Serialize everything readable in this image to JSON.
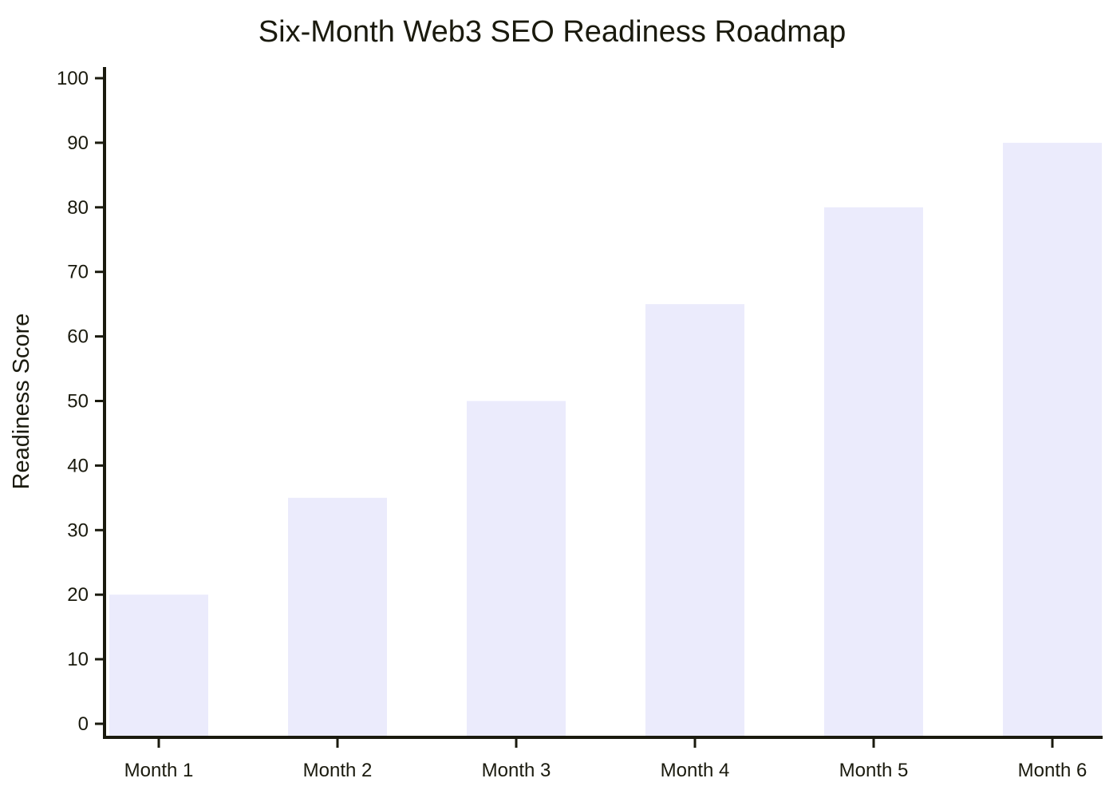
{
  "chart_data": {
    "type": "bar",
    "title": "Six-Month Web3 SEO Readiness Roadmap",
    "xlabel": "",
    "ylabel": "Readiness Score",
    "categories": [
      "Month 1",
      "Month 2",
      "Month 3",
      "Month 4",
      "Month 5",
      "Month 6"
    ],
    "values": [
      20,
      35,
      50,
      65,
      80,
      90
    ],
    "ylim": [
      0,
      100
    ],
    "yticks": [
      0,
      10,
      20,
      30,
      40,
      50,
      60,
      70,
      80,
      90,
      100
    ],
    "bar_color": "#ebebfc",
    "axis_color": "#1a1a0e",
    "grid": false,
    "legend": "none"
  }
}
